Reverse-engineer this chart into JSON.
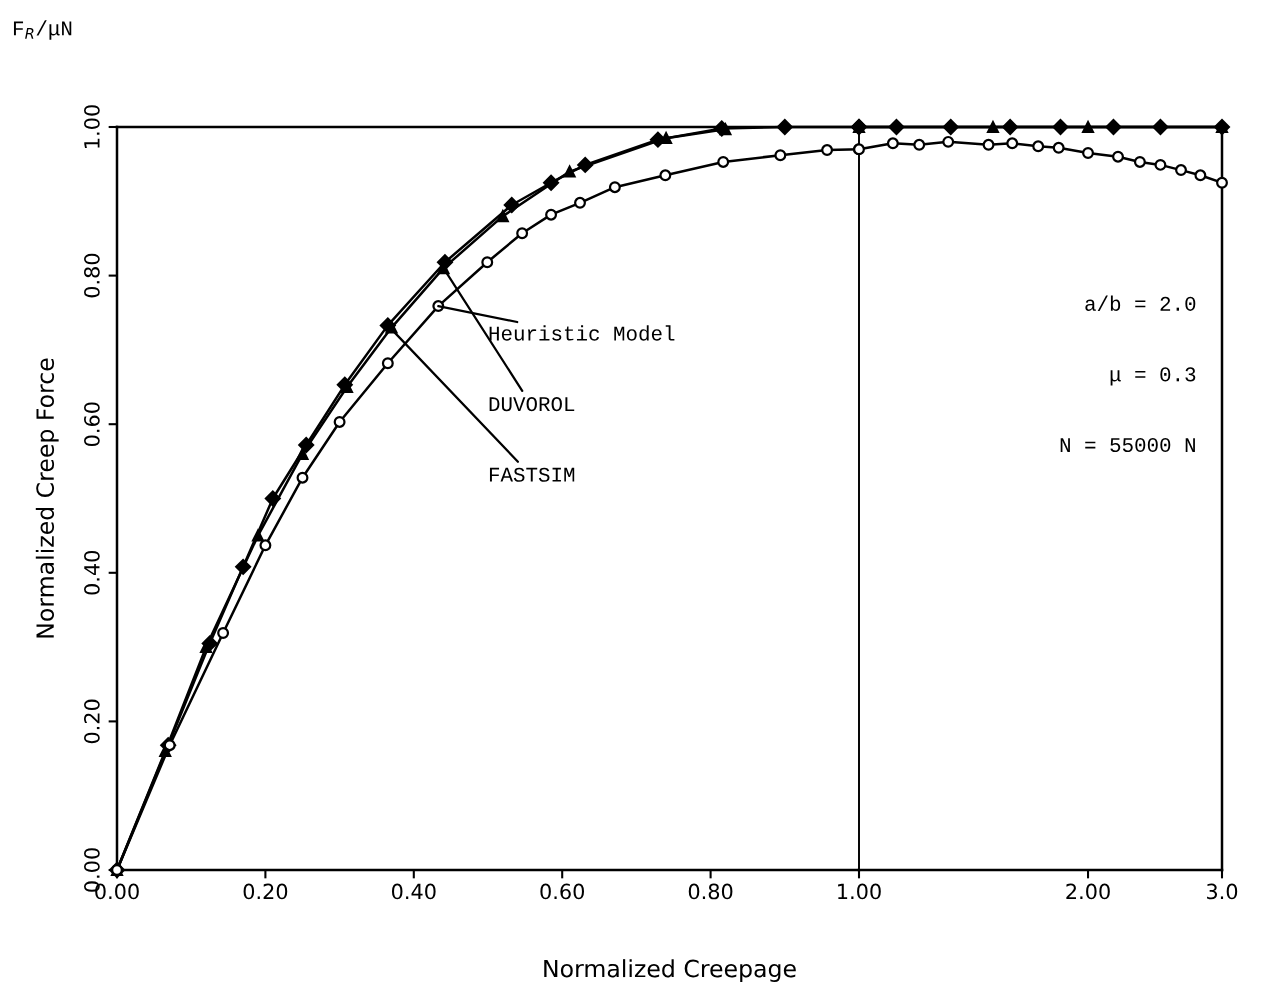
{
  "chart_data": [
    {
      "type": "line",
      "xlabel": "Normalized Creepage",
      "ylabel": "Normalized Creep Force",
      "xlim": [
        0,
        1.0
      ],
      "ylim": [
        0,
        1.0
      ],
      "xticks": [
        {
          "value": 0,
          "label": "0.00"
        },
        {
          "value": 0.2,
          "label": "0.20"
        },
        {
          "value": 0.4,
          "label": "0.40"
        },
        {
          "value": 0.6,
          "label": "0.60"
        },
        {
          "value": 0.8,
          "label": "0.80"
        },
        {
          "value": 1.0,
          "label": "1.00"
        }
      ],
      "yticks": [
        {
          "value": 0,
          "label": "0.00"
        },
        {
          "value": 0.2,
          "label": "0.20"
        },
        {
          "value": 0.4,
          "label": "0.40"
        },
        {
          "value": 0.6,
          "label": "0.60"
        },
        {
          "value": 0.8,
          "label": "0.80"
        },
        {
          "value": 1.0,
          "label": "1.00"
        }
      ],
      "grid": false,
      "series": [
        {
          "color": "#000000",
          "marker": "diamond",
          "x": [
            0,
            0.069,
            0.125,
            0.17,
            0.21,
            0.255,
            0.307,
            0.365,
            0.442,
            0.532,
            0.585,
            0.631,
            0.729,
            0.815,
            0.9,
            1.0
          ],
          "values": [
            0,
            0.168,
            0.305,
            0.408,
            0.5,
            0.572,
            0.653,
            0.733,
            0.818,
            0.895,
            0.925,
            0.949,
            0.983,
            0.998,
            1.0,
            1.0
          ]
        },
        {
          "color": "#000000",
          "marker": "triangle",
          "x": [
            0,
            0.065,
            0.12,
            0.19,
            0.25,
            0.31,
            0.37,
            0.44,
            0.52,
            0.61,
            0.74,
            0.82
          ],
          "values": [
            0,
            0.16,
            0.3,
            0.45,
            0.56,
            0.65,
            0.73,
            0.81,
            0.88,
            0.94,
            0.985,
            0.997
          ]
        },
        {
          "color": "#000000",
          "marker": "circle",
          "x": [
            0,
            0.071,
            0.143,
            0.2,
            0.25,
            0.3,
            0.365,
            0.433,
            0.499,
            0.546,
            0.585,
            0.624,
            0.671,
            0.739,
            0.817,
            0.894,
            0.957,
            1.0
          ],
          "values": [
            0,
            0.168,
            0.319,
            0.437,
            0.528,
            0.603,
            0.682,
            0.759,
            0.818,
            0.857,
            0.882,
            0.898,
            0.919,
            0.935,
            0.953,
            0.962,
            0.969,
            0.97
          ]
        }
      ],
      "annotations": [
        {
          "text": "Heuristic Model",
          "x": 0.433,
          "y": 0.759
        },
        {
          "text": "DUVOROL",
          "x": 0.44,
          "y": 0.81
        },
        {
          "text": "FASTSIM",
          "x": 0.365,
          "y": 0.733
        },
        "F$_{R}$/μN"
      ]
    },
    {
      "type": "line",
      "log": "x",
      "xlim": [
        1.0,
        3.0
      ],
      "ylim": [
        0,
        1.0
      ],
      "tick_labels": "x",
      "ref_lines": [
        {
          "axis": "x",
          "value": 1.0,
          "color": "#000000",
          "line_style": "solid"
        }
      ],
      "xticks": [
        {
          "value": 2.0,
          "label": "2.00"
        },
        {
          "value": 3.0,
          "label": "3.0"
        }
      ],
      "grid": false,
      "series": [
        {
          "color": "#000000",
          "marker": "diamond",
          "x": [
            1.0,
            1.12,
            1.32,
            1.58,
            1.84,
            2.16,
            2.49,
            3.0
          ],
          "values": [
            1.0,
            1.0,
            1.0,
            1.0,
            1.0,
            1.0,
            1.0,
            1.0
          ]
        },
        {
          "color": "#000000",
          "marker": "triangle",
          "x": [
            1.0,
            1.5,
            2.0,
            3.0
          ],
          "values": [
            1.0,
            1.0,
            1.0,
            1.0
          ]
        },
        {
          "color": "#000000",
          "marker": "circle",
          "x": [
            1.0,
            1.108,
            1.2,
            1.31,
            1.48,
            1.59,
            1.72,
            1.83,
            2.0,
            2.19,
            2.34,
            2.49,
            2.65,
            2.81,
            3.0
          ],
          "values": [
            0.97,
            0.978,
            0.976,
            0.98,
            0.976,
            0.978,
            0.974,
            0.972,
            0.965,
            0.96,
            0.953,
            0.949,
            0.942,
            0.935,
            0.925
          ]
        }
      ],
      "annotations": [
        "a/b = 2.0",
        "μ = 0.3",
        "N = 55000 N"
      ]
    }
  ]
}
